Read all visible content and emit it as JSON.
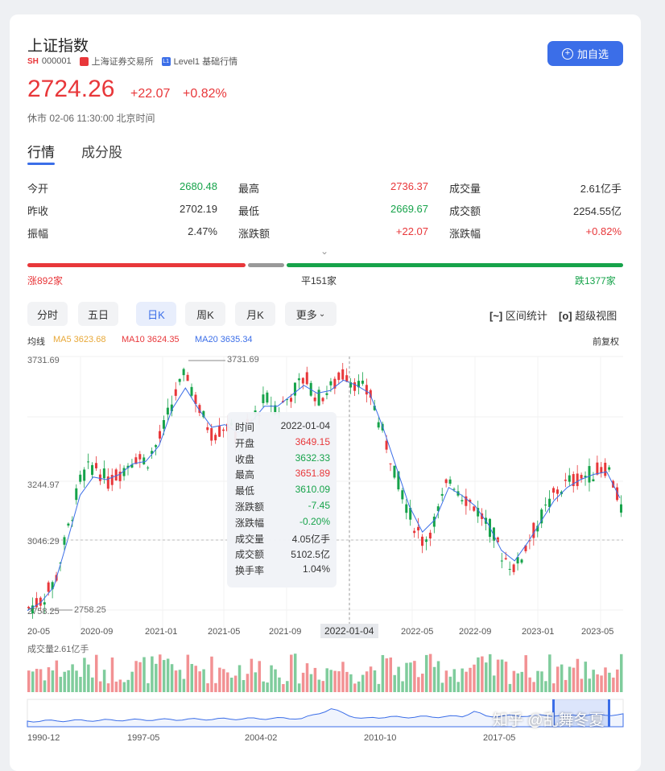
{
  "header": {
    "title": "上证指数",
    "exchange_badge": "SH",
    "code": "000001",
    "exchange": "上海证券交易所",
    "level_badge": "L1",
    "level": "Level1 基础行情",
    "add_button": "加自选"
  },
  "quote": {
    "price": "2724.26",
    "change": "+22.07",
    "change_pct": "+0.82%",
    "status": "休市 02-06 11:30:00 北京时间"
  },
  "tabs": [
    {
      "label": "行情"
    },
    {
      "label": "成分股"
    }
  ],
  "stats": [
    {
      "label": "今开",
      "value": "2680.48",
      "color": "green"
    },
    {
      "label": "最高",
      "value": "2736.37",
      "color": "red"
    },
    {
      "label": "成交量",
      "value": "2.61亿手",
      "color": "dark"
    },
    {
      "label": "昨收",
      "value": "2702.19",
      "color": "dark"
    },
    {
      "label": "最低",
      "value": "2669.67",
      "color": "green"
    },
    {
      "label": "成交额",
      "value": "2254.55亿",
      "color": "dark"
    },
    {
      "label": "振幅",
      "value": "2.47%",
      "color": "dark"
    },
    {
      "label": "涨跌额",
      "value": "+22.07",
      "color": "red"
    },
    {
      "label": "涨跌幅",
      "value": "+0.82%",
      "color": "red"
    }
  ],
  "breadth": {
    "up": "涨892家",
    "flat": "平151家",
    "down": "跌1377家",
    "up_count": 892,
    "flat_count": 151,
    "down_count": 1377
  },
  "chart_tabs": [
    {
      "label": "分时"
    },
    {
      "label": "五日"
    },
    {
      "label": "日K"
    },
    {
      "label": "周K"
    },
    {
      "label": "月K"
    },
    {
      "label": "更多"
    }
  ],
  "selected_chart_tab": "日K",
  "tools": {
    "range_stats": "区间统计",
    "super_view": "超级视图",
    "adjust": "前复权"
  },
  "ma": {
    "label": "均线",
    "ma5": "MA5 3623.68",
    "ma10": "MA10 3624.35",
    "ma20": "MA20 3635.34"
  },
  "tooltip": {
    "rows": [
      {
        "label": "时间",
        "value": "2022-01-04",
        "color": "dark"
      },
      {
        "label": "开盘",
        "value": "3649.15",
        "color": "red"
      },
      {
        "label": "收盘",
        "value": "3632.33",
        "color": "green"
      },
      {
        "label": "最高",
        "value": "3651.89",
        "color": "red"
      },
      {
        "label": "最低",
        "value": "3610.09",
        "color": "green"
      },
      {
        "label": "涨跌额",
        "value": "-7.45",
        "color": "green"
      },
      {
        "label": "涨跌幅",
        "value": "-0.20%",
        "color": "green"
      },
      {
        "label": "成交量",
        "value": "4.05亿手",
        "color": "dark"
      },
      {
        "label": "成交额",
        "value": "5102.5亿",
        "color": "dark"
      },
      {
        "label": "换手率",
        "value": "1.04%",
        "color": "dark"
      }
    ]
  },
  "chart_data": {
    "type": "candlestick",
    "y_tick_labels": [
      "3731.69",
      "3244.97",
      "3046.29",
      "2758.25"
    ],
    "max_label": "3731.69",
    "min_label": "2758.25",
    "ylim": [
      2700,
      3760
    ],
    "x_tick_labels": [
      "20-05",
      "2020-09",
      "2021-01",
      "2021-05",
      "2021-09",
      "2022-05",
      "2022-09",
      "2023-01",
      "2023-05"
    ],
    "crosshair_label": "2022-01-04",
    "close_series": [
      2800,
      2830,
      2900,
      3100,
      3300,
      3350,
      3280,
      3320,
      3380,
      3360,
      3450,
      3600,
      3700,
      3550,
      3460,
      3500,
      3440,
      3520,
      3600,
      3560,
      3620,
      3680,
      3600,
      3640,
      3700,
      3650,
      3610,
      3450,
      3300,
      3150,
      3050,
      3150,
      3300,
      3230,
      3180,
      3110,
      3000,
      2950,
      3060,
      3150,
      3240,
      3280,
      3300,
      3320,
      3340,
      3180
    ],
    "ma_series": [
      2790,
      2820,
      2880,
      3050,
      3230,
      3300,
      3290,
      3310,
      3350,
      3360,
      3420,
      3560,
      3640,
      3560,
      3490,
      3500,
      3470,
      3510,
      3570,
      3570,
      3610,
      3650,
      3620,
      3630,
      3670,
      3650,
      3620,
      3490,
      3340,
      3190,
      3090,
      3140,
      3260,
      3230,
      3190,
      3120,
      3020,
      2980,
      3050,
      3130,
      3210,
      3260,
      3290,
      3310,
      3320,
      3220
    ],
    "volume_label": "成交量2.61亿手",
    "overview_x_labels": [
      "1990-12",
      "1997-05",
      "2004-02",
      "2010-10",
      "2017-05"
    ]
  },
  "watermark": "知乎 @乱舞冬夏",
  "colors": {
    "accent": "#3b6ee8",
    "up": "#e8373a",
    "down": "#16a34a",
    "ma5": "#e8a838",
    "ma10": "#e8373a",
    "ma20": "#3b6ee8"
  }
}
